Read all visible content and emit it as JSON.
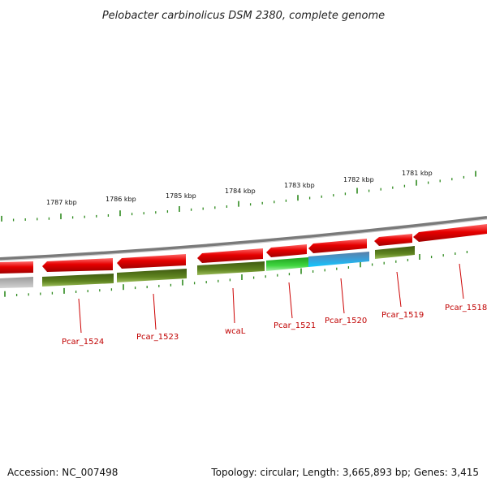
{
  "title": "Pelobacter carbinolicus DSM 2380, complete genome",
  "footer": {
    "accession": "Accession: NC_007498",
    "summary": "Topology: circular; Length: 3,665,893 bp; Genes: 3,415"
  },
  "scale_labels": [
    "1787 kbp",
    "1786 kbp",
    "1785 kbp",
    "1784 kbp",
    "1783 kbp",
    "1782 kbp",
    "1781 kbp"
  ],
  "gene_labels": [
    "Pcar_1524",
    "Pcar_1523",
    "wcaL",
    "Pcar_1521",
    "Pcar_1520",
    "Pcar_1519",
    "Pcar_1518"
  ],
  "colors": {
    "cds": "#e60000",
    "gene": "#5a7d1a",
    "highlight_green": "#33cc33",
    "highlight_blue": "#2aa8e0",
    "backbone": "#888888",
    "ticks": "#2f8a1f",
    "label": "#c00000"
  }
}
